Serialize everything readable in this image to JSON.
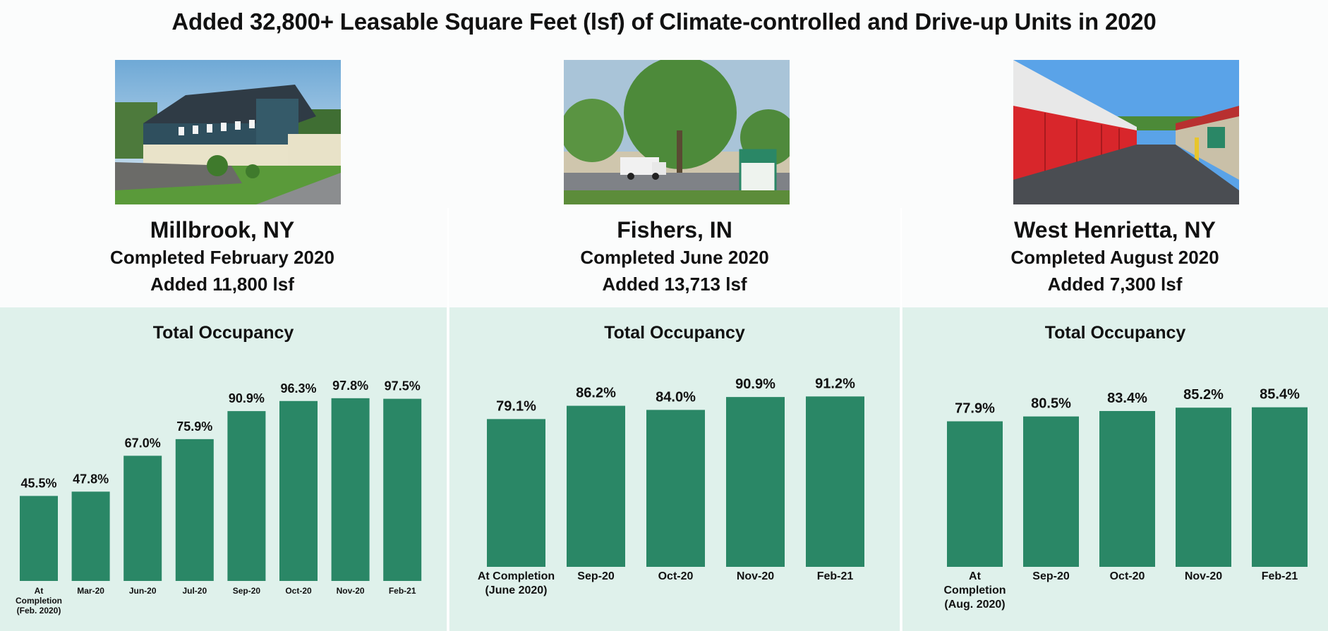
{
  "title": "Added 32,800+ Leasable Square Feet (lsf) of Climate-controlled and Drive-up Units in 2020",
  "locations": [
    {
      "city": "Millbrook, NY",
      "completed": "Completed February 2020",
      "added": "Added 11,800 lsf"
    },
    {
      "city": "Fishers, IN",
      "completed": "Completed June 2020",
      "added": "Added 13,713 lsf"
    },
    {
      "city": "West Henrietta, NY",
      "completed": "Completed August 2020",
      "added": "Added 7,300 lsf"
    }
  ],
  "colors": {
    "bar": "#2a8766",
    "panel": "#dff1eb"
  },
  "chart_data": [
    {
      "type": "bar",
      "title": "Total Occupancy",
      "categories": [
        "At Completion (Feb. 2020)",
        "Mar-20",
        "Jun-20",
        "Jul-20",
        "Sep-20",
        "Oct-20",
        "Nov-20",
        "Feb-21"
      ],
      "values": [
        45.5,
        47.8,
        67.0,
        75.9,
        90.9,
        96.3,
        97.8,
        97.5
      ],
      "labels": [
        "45.5%",
        "47.8%",
        "67.0%",
        "75.9%",
        "90.9%",
        "96.3%",
        "97.8%",
        "97.5%"
      ],
      "ylim": [
        0,
        100
      ]
    },
    {
      "type": "bar",
      "title": "Total Occupancy",
      "categories": [
        "At Completion (June 2020)",
        "Sep-20",
        "Oct-20",
        "Nov-20",
        "Feb-21"
      ],
      "values": [
        79.1,
        86.2,
        84.0,
        90.9,
        91.2
      ],
      "labels": [
        "79.1%",
        "86.2%",
        "84.0%",
        "90.9%",
        "91.2%"
      ],
      "ylim": [
        0,
        100
      ]
    },
    {
      "type": "bar",
      "title": "Total Occupancy",
      "categories": [
        "At Completion (Aug. 2020)",
        "Sep-20",
        "Oct-20",
        "Nov-20",
        "Feb-21"
      ],
      "values": [
        77.9,
        80.5,
        83.4,
        85.2,
        85.4
      ],
      "labels": [
        "77.9%",
        "80.5%",
        "83.4%",
        "85.2%",
        "85.4%"
      ],
      "ylim": [
        0,
        100
      ]
    }
  ]
}
